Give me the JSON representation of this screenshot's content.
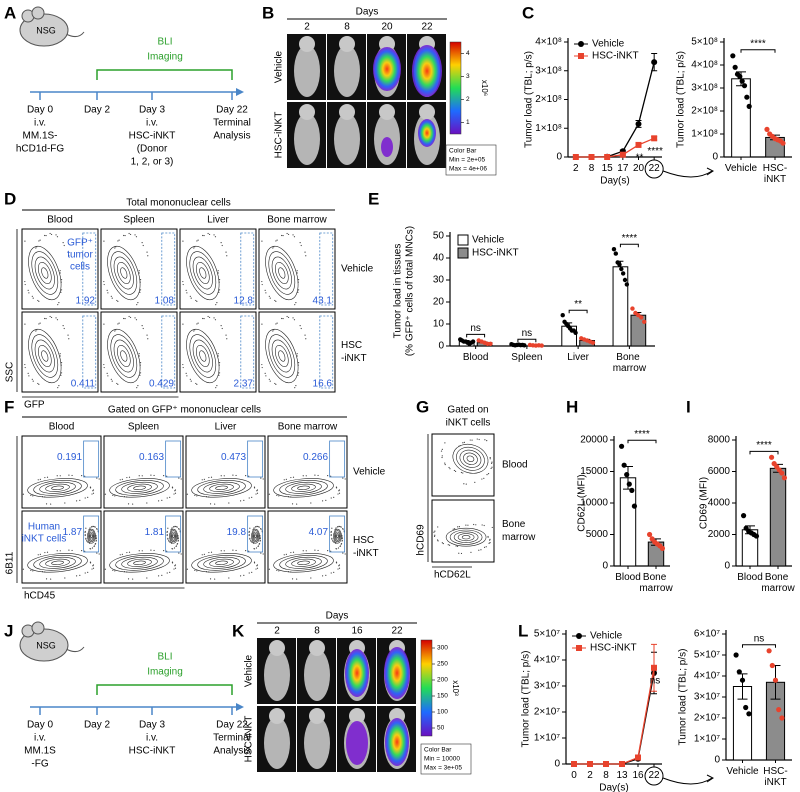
{
  "panel_labels": [
    "A",
    "B",
    "C",
    "D",
    "E",
    "F",
    "G",
    "H",
    "I",
    "J",
    "K",
    "L"
  ],
  "timeline_a": {
    "mouse": "NSG",
    "bli": "BLI",
    "imaging": "Imaging",
    "day0": [
      "Day 0",
      "i.v.",
      "MM.1S-",
      "hCD1d-FG"
    ],
    "day2": [
      "Day 2"
    ],
    "day3": [
      "Day 3",
      "i.v.",
      "HSC-iNKT",
      "(Donor",
      "1, 2, or 3)"
    ],
    "day22": [
      "Day 22",
      "Terminal",
      "Analysis"
    ]
  },
  "timeline_j": {
    "mouse": "NSG",
    "bli": "BLI",
    "imaging": "Imaging",
    "day0": [
      "Day 0",
      "i.v.",
      "MM.1S",
      "-FG"
    ],
    "day2": [
      "Day 2"
    ],
    "day3": [
      "Day 3",
      "i.v.",
      "HSC-iNKT"
    ],
    "day22": [
      "Day 22",
      "Terminal",
      "Analysis"
    ]
  },
  "bli_b": {
    "header": "Days",
    "days": [
      "2",
      "8",
      "20",
      "22"
    ],
    "rows": [
      "Vehicle",
      "HSC-iNKT"
    ],
    "scale_ticks": [
      "4",
      "3",
      "2",
      "1"
    ],
    "scale_unit": "x10⁶",
    "legend": [
      "Color Bar",
      "Min = 2e+05",
      "Max = 4e+06"
    ]
  },
  "bli_k": {
    "header": "Days",
    "days": [
      "2",
      "8",
      "16",
      "22"
    ],
    "rows": [
      "Vehicle",
      "HSC-iNKT"
    ],
    "scale_ticks": [
      "300",
      "250",
      "200",
      "150",
      "100",
      "50"
    ],
    "scale_unit": "x10³",
    "legend": [
      "Color Bar",
      "Min = 10000",
      "Max = 3e+05"
    ]
  },
  "flow_d": {
    "title": "Total mononuclear cells",
    "columns": [
      "Blood",
      "Spleen",
      "Liver",
      "Bone marrow"
    ],
    "rows": [
      [
        "Vehicle"
      ],
      [
        "HSC",
        "-iNKT"
      ]
    ],
    "gate_label": [
      "GFP⁺",
      "tumor",
      "cells"
    ],
    "gates": [
      [
        "1.92",
        "1.08",
        "12.8",
        "43.1"
      ],
      [
        "0.411",
        "0.429",
        "2.37",
        "16.6"
      ]
    ],
    "y_label": "SSC",
    "x_label": "GFP"
  },
  "flow_f": {
    "title": "Gated on GFP⁺ mononuclear cells",
    "columns": [
      "Blood",
      "Spleen",
      "Liver",
      "Bone marrow"
    ],
    "rows": [
      [
        "Vehicle"
      ],
      [
        "HSC",
        "-iNKT"
      ]
    ],
    "gate_label": [
      "Human",
      "iNKT cells"
    ],
    "gates": [
      [
        "0.191",
        "0.163",
        "0.473",
        "0.266"
      ],
      [
        "1.87",
        "1.81",
        "19.8",
        "4.07"
      ]
    ],
    "y_label": "6B11",
    "x_label": "hCD45"
  },
  "flow_g": {
    "title": [
      "Gated on",
      "iNKT cells"
    ],
    "rows": [
      [
        "Blood"
      ],
      [
        "Bone",
        "marrow"
      ]
    ],
    "y_label": "hCD69",
    "x_label": "hCD62L"
  },
  "chart_data": [
    {
      "type": "line",
      "ylabel": "Tumor load (TBL; p/s)",
      "xlabel": "Day(s)",
      "categories": [
        "2",
        "8",
        "15",
        "17",
        "20",
        "22"
      ],
      "ylim": [
        0,
        400000000
      ],
      "yticks": [
        0,
        {
          "value": 100000000,
          "label": "1×10⁸"
        },
        {
          "value": 200000000,
          "label": "2×10⁸"
        },
        {
          "value": 300000000,
          "label": "3×10⁸"
        },
        {
          "value": 400000000,
          "label": "4×10⁸"
        }
      ],
      "series": [
        {
          "name": "Vehicle",
          "color": "#000000",
          "marker": "circle",
          "values": [
            0,
            0,
            1000000,
            20000000,
            115000000,
            330000000
          ],
          "errors": [
            0,
            0,
            0,
            4000000,
            12000000,
            30000000
          ]
        },
        {
          "name": "HSC-iNKT",
          "color": "#e8432d",
          "marker": "square",
          "values": [
            0,
            0,
            0,
            8000000,
            42000000,
            65000000
          ],
          "errors": [
            0,
            0,
            0,
            2000000,
            5000000,
            6000000
          ]
        }
      ],
      "significance": [
        "**",
        "****"
      ],
      "significance_color": "#e8432d"
    },
    {
      "type": "bar",
      "ylabel": "Tumor load (TBL; p/s)",
      "categories": [
        "Vehicle",
        "HSC-iNKT"
      ],
      "ylim": [
        0,
        500000000
      ],
      "yticks": [
        0,
        {
          "value": 100000000,
          "label": "1×10⁸"
        },
        {
          "value": 200000000,
          "label": "2×10⁸"
        },
        {
          "value": 300000000,
          "label": "3×10⁸"
        },
        {
          "value": 400000000,
          "label": "4×10⁸"
        },
        {
          "value": 500000000,
          "label": "5×10⁸"
        }
      ],
      "values": [
        340000000,
        85000000
      ],
      "errors": [
        30000000,
        10000000
      ],
      "bar_colors": [
        "#ffffff",
        "#8c8c8c"
      ],
      "point_colors": [
        "#000000",
        "#e8432d"
      ],
      "points": [
        [
          440000000,
          390000000,
          360000000,
          350000000,
          330000000,
          310000000,
          260000000,
          220000000
        ],
        [
          120000000,
          100000000,
          90000000,
          80000000,
          75000000,
          70000000,
          60000000
        ]
      ],
      "significance": "****",
      "significance_color": "#e8432d"
    },
    {
      "type": "bar",
      "ylabel": [
        "Tumor load in tissues",
        "(% GFP⁺ cells of total MNCs)"
      ],
      "categories": [
        "Blood",
        "Spleen",
        "Liver",
        "Bone marrow"
      ],
      "ylim": [
        0,
        50
      ],
      "yticks": [
        0,
        10,
        20,
        30,
        40,
        50
      ],
      "series": [
        {
          "name": "Vehicle",
          "color": "#ffffff",
          "point_color": "#000000",
          "values": [
            2,
            0.5,
            9,
            36
          ],
          "errors": [
            0.5,
            0.2,
            1.5,
            2.5
          ],
          "points": [
            [
              3,
              2.5,
              2,
              2,
              1.5,
              1,
              1.5,
              2
            ],
            [
              0.8,
              0.5,
              0.3,
              0.5,
              0.6,
              0.4,
              0.5,
              0.3
            ],
            [
              14,
              11,
              10,
              9,
              8,
              7,
              7,
              6
            ],
            [
              44,
              42,
              38,
              37,
              35,
              33,
              30,
              28
            ]
          ]
        },
        {
          "name": "HSC-iNKT",
          "color": "#8c8c8c",
          "point_color": "#e8432d",
          "values": [
            1.5,
            0.3,
            2.5,
            14
          ],
          "errors": [
            0.3,
            0.1,
            0.5,
            1.2
          ],
          "points": [
            [
              2.5,
              2,
              1.5,
              1,
              1
            ],
            [
              0.5,
              0.3,
              0.2,
              0.3,
              0.2
            ],
            [
              3.5,
              3,
              2.5,
              2,
              1.5
            ],
            [
              17,
              15,
              14,
              13,
              11
            ]
          ]
        }
      ],
      "significance": [
        "ns",
        "ns",
        "**",
        "****"
      ],
      "significance_color": "#e8432d"
    },
    {
      "type": "bar",
      "ylabel": "CD62L (MFI)",
      "categories": [
        "Blood",
        "Bone marrow"
      ],
      "ylim": [
        0,
        20000
      ],
      "yticks": [
        0,
        5000,
        10000,
        15000,
        20000
      ],
      "values": [
        14000,
        3800
      ],
      "errors": [
        1800,
        500
      ],
      "bar_colors": [
        "#ffffff",
        "#8c8c8c"
      ],
      "point_colors": [
        "#000000",
        "#e8432d"
      ],
      "points": [
        [
          19000,
          16000,
          14500,
          13000,
          12000,
          9500
        ],
        [
          5000,
          4300,
          3800,
          3500,
          3200,
          2800
        ]
      ],
      "significance": "****",
      "significance_color": "#e8432d"
    },
    {
      "type": "bar",
      "ylabel": "CD69 (MFI)",
      "categories": [
        "Blood",
        "Bone marrow"
      ],
      "ylim": [
        0,
        8000
      ],
      "yticks": [
        0,
        2000,
        4000,
        6000,
        8000
      ],
      "values": [
        2300,
        6200
      ],
      "errors": [
        250,
        250
      ],
      "bar_colors": [
        "#ffffff",
        "#8c8c8c"
      ],
      "point_colors": [
        "#000000",
        "#e8432d"
      ],
      "points": [
        [
          3200,
          2400,
          2200,
          2100,
          2000,
          1900
        ],
        [
          6900,
          6500,
          6300,
          6100,
          5900,
          5600
        ]
      ],
      "significance": "****",
      "significance_color": "#e8432d"
    },
    {
      "type": "line",
      "ylabel": "Tumor load (TBL; p/s)",
      "xlabel": "Day(s)",
      "categories": [
        "0",
        "2",
        "8",
        "13",
        "16",
        "22"
      ],
      "ylim": [
        0,
        50000000
      ],
      "yticks": [
        0,
        {
          "value": 10000000,
          "label": "1×10⁷"
        },
        {
          "value": 20000000,
          "label": "2×10⁷"
        },
        {
          "value": 30000000,
          "label": "3×10⁷"
        },
        {
          "value": 40000000,
          "label": "4×10⁷"
        },
        {
          "value": 50000000,
          "label": "5×10⁷"
        }
      ],
      "series": [
        {
          "name": "Vehicle",
          "color": "#000000",
          "marker": "circle",
          "values": [
            0,
            0,
            0,
            0,
            2000000,
            35000000
          ],
          "errors": [
            0,
            0,
            0,
            0,
            500000,
            8000000
          ]
        },
        {
          "name": "HSC-iNKT",
          "color": "#e8432d",
          "marker": "square",
          "values": [
            0,
            0,
            0,
            0,
            2500000,
            37000000
          ],
          "errors": [
            0,
            0,
            0,
            0,
            600000,
            9000000
          ]
        }
      ],
      "significance": [
        "ns"
      ],
      "significance_color": "#e8432d"
    },
    {
      "type": "bar",
      "ylabel": "Tumor load (TBL; p/s)",
      "categories": [
        "Vehicle",
        "HSC-iNKT"
      ],
      "ylim": [
        0,
        60000000
      ],
      "yticks": [
        0,
        {
          "value": 10000000,
          "label": "1×10⁷"
        },
        {
          "value": 20000000,
          "label": "2×10⁷"
        },
        {
          "value": 30000000,
          "label": "3×10⁷"
        },
        {
          "value": 40000000,
          "label": "4×10⁷"
        },
        {
          "value": 50000000,
          "label": "5×10⁷"
        },
        {
          "value": 60000000,
          "label": "6×10⁷"
        }
      ],
      "values": [
        35000000,
        37000000
      ],
      "errors": [
        6000000,
        8000000
      ],
      "bar_colors": [
        "#ffffff",
        "#8c8c8c"
      ],
      "point_colors": [
        "#000000",
        "#e8432d"
      ],
      "points": [
        [
          50000000,
          42000000,
          38000000,
          25000000,
          22000000
        ],
        [
          52000000,
          45000000,
          38000000,
          24000000,
          20000000
        ]
      ],
      "significance": "ns",
      "significance_color": "#e8432d"
    }
  ]
}
